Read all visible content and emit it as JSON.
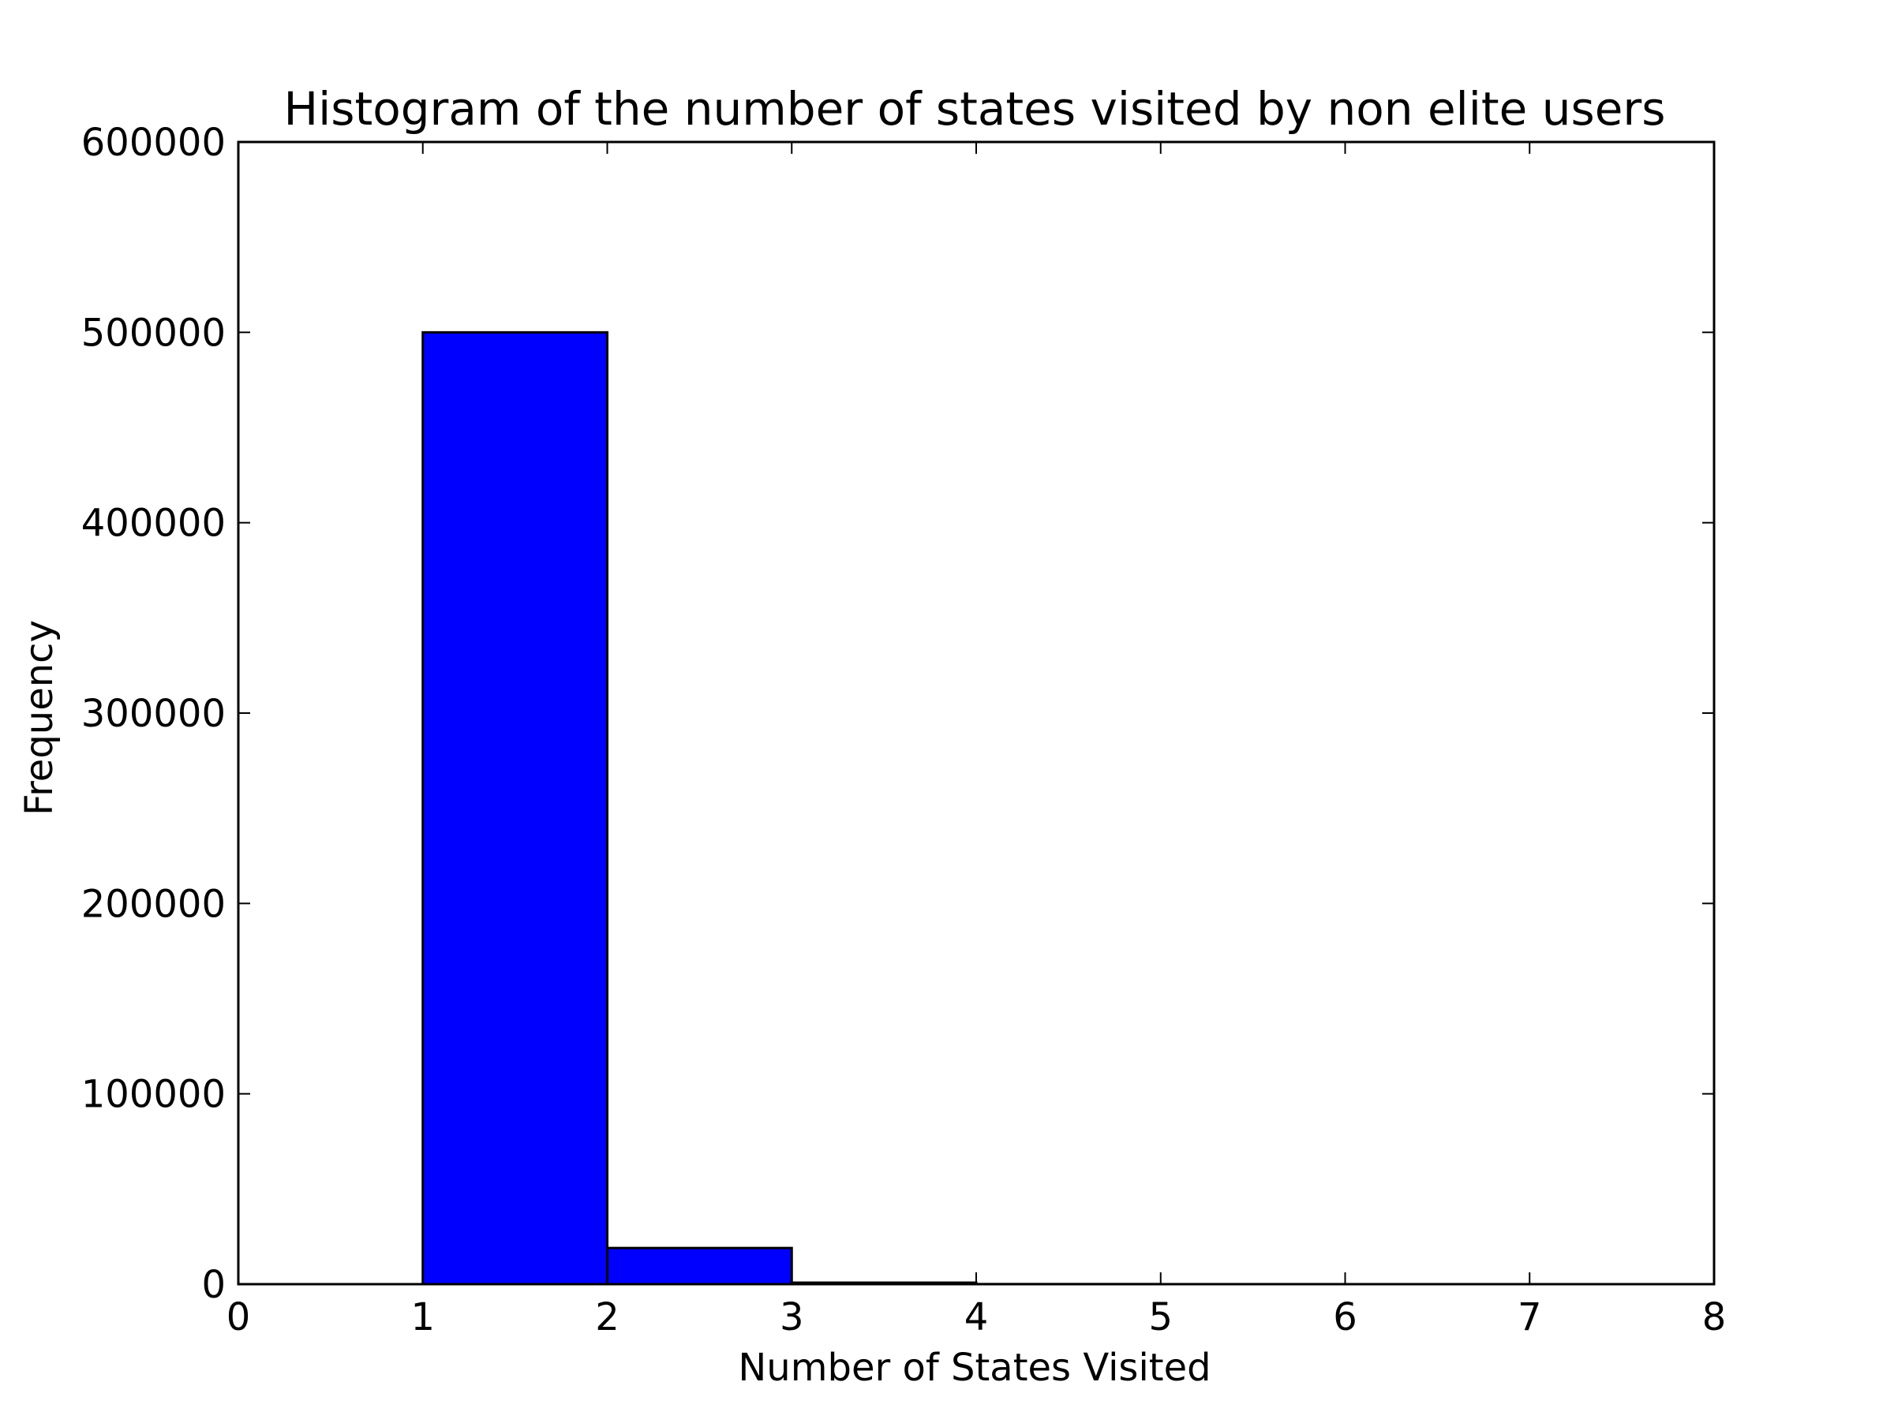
{
  "chart_data": {
    "type": "bar",
    "title": "Histogram of the number of states visited by non elite users",
    "xlabel": "Number of States Visited",
    "ylabel": "Frequency",
    "xlim": [
      0,
      8
    ],
    "ylim": [
      0,
      600000
    ],
    "x_ticks": [
      "0",
      "1",
      "2",
      "3",
      "4",
      "5",
      "6",
      "7",
      "8"
    ],
    "y_ticks": [
      "0",
      "100000",
      "200000",
      "300000",
      "400000",
      "500000",
      "600000"
    ],
    "bins": [
      {
        "x0": 1,
        "x1": 2,
        "value": 500000
      },
      {
        "x0": 2,
        "x1": 3,
        "value": 19000
      },
      {
        "x0": 3,
        "x1": 4,
        "value": 800
      },
      {
        "x0": 4,
        "x1": 5,
        "value": 50
      },
      {
        "x0": 5,
        "x1": 6,
        "value": 10
      },
      {
        "x0": 6,
        "x1": 7,
        "value": 5
      },
      {
        "x0": 7,
        "x1": 8,
        "value": 2
      }
    ],
    "bar_color": "#0000ff",
    "edge_color": "#000000",
    "grid": false,
    "legend": "none"
  }
}
